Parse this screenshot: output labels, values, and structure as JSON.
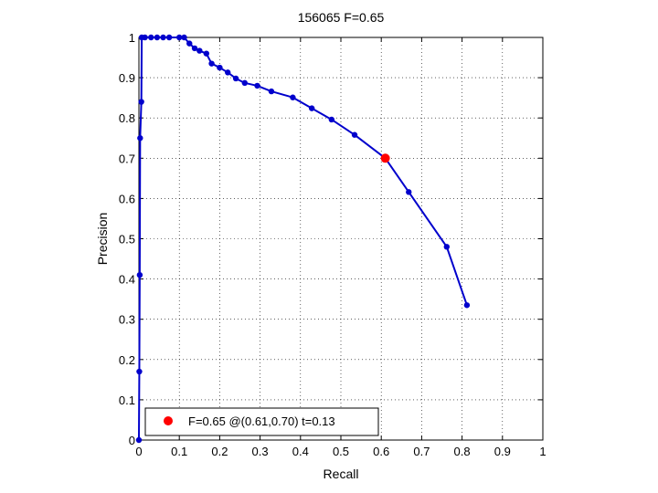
{
  "chart_data": {
    "type": "line",
    "title": "156065 F=0.65",
    "xlabel": "Recall",
    "ylabel": "Precision",
    "xlim": [
      0,
      1
    ],
    "ylim": [
      0,
      1
    ],
    "xticks": [
      "0",
      "0.1",
      "0.2",
      "0.3",
      "0.4",
      "0.5",
      "0.6",
      "0.7",
      "0.8",
      "0.9",
      "1"
    ],
    "yticks": [
      "0",
      "0.1",
      "0.2",
      "0.3",
      "0.4",
      "0.5",
      "0.6",
      "0.7",
      "0.8",
      "0.9",
      "1"
    ],
    "grid": true,
    "legend_location": "bottom-left",
    "series": [
      {
        "color": "#0000cc",
        "marker": "dot",
        "points": [
          [
            0.0,
            0.0
          ],
          [
            0.001,
            0.17
          ],
          [
            0.002,
            0.41
          ],
          [
            0.003,
            0.75
          ],
          [
            0.006,
            0.84
          ],
          [
            0.007,
            1.0
          ],
          [
            0.015,
            1.0
          ],
          [
            0.03,
            1.0
          ],
          [
            0.045,
            1.0
          ],
          [
            0.06,
            1.0
          ],
          [
            0.075,
            1.0
          ],
          [
            0.1,
            1.0
          ],
          [
            0.112,
            1.0
          ],
          [
            0.125,
            0.985
          ],
          [
            0.138,
            0.973
          ],
          [
            0.15,
            0.967
          ],
          [
            0.167,
            0.96
          ],
          [
            0.18,
            0.935
          ],
          [
            0.2,
            0.925
          ],
          [
            0.22,
            0.913
          ],
          [
            0.24,
            0.898
          ],
          [
            0.262,
            0.887
          ],
          [
            0.293,
            0.88
          ],
          [
            0.328,
            0.866
          ],
          [
            0.381,
            0.851
          ],
          [
            0.428,
            0.824
          ],
          [
            0.477,
            0.796
          ],
          [
            0.534,
            0.758
          ],
          [
            0.61,
            0.7
          ],
          [
            0.668,
            0.616
          ],
          [
            0.762,
            0.48
          ],
          [
            0.812,
            0.335
          ]
        ]
      }
    ],
    "highlight": {
      "recall": 0.61,
      "precision": 0.7,
      "color": "#ff0000",
      "legend_label": "F=0.65 @(0.61,0.70) t=0.13"
    }
  }
}
